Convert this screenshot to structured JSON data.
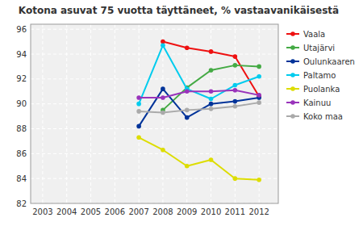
{
  "chart_data": {
    "type": "line",
    "title": "Kotona asuvat 75 vuotta täyttäneet, % vastaavanikäisestä",
    "x": [
      2007,
      2008,
      2009,
      2010,
      2011,
      2012
    ],
    "series": [
      {
        "name": "Vaala",
        "color": "#ee1111",
        "values": [
          null,
          95.0,
          94.5,
          94.2,
          93.8,
          90.6
        ]
      },
      {
        "name": "Utajärvi",
        "color": "#44aa44",
        "values": [
          null,
          89.5,
          91.3,
          92.7,
          93.1,
          93.0
        ]
      },
      {
        "name": "Oulunkaaren",
        "color": "#003399",
        "values": [
          88.2,
          91.2,
          88.9,
          90.0,
          90.2,
          90.5
        ]
      },
      {
        "name": "Paltamo",
        "color": "#00ccee",
        "values": [
          90.0,
          94.7,
          91.2,
          90.4,
          91.5,
          92.2
        ]
      },
      {
        "name": "Puolanka",
        "color": "#dddd00",
        "values": [
          87.3,
          86.3,
          85.0,
          85.5,
          84.0,
          83.9
        ]
      },
      {
        "name": "Kainuu",
        "color": "#9933bb",
        "values": [
          90.5,
          90.5,
          91.0,
          91.0,
          91.1,
          90.7
        ]
      },
      {
        "name": "Koko maa",
        "color": "#aaaaaa",
        "values": [
          89.4,
          89.3,
          89.5,
          89.6,
          89.8,
          90.1
        ]
      }
    ],
    "xlim": [
      2002.5,
      2012.8
    ],
    "ylim": [
      82,
      96.4
    ],
    "xticks": [
      2003,
      2004,
      2005,
      2006,
      2007,
      2008,
      2009,
      2010,
      2011,
      2012
    ],
    "yticks": [
      82,
      84,
      86,
      88,
      90,
      92,
      94,
      96
    ],
    "grid": true,
    "marker": "circle",
    "legend": "right"
  }
}
